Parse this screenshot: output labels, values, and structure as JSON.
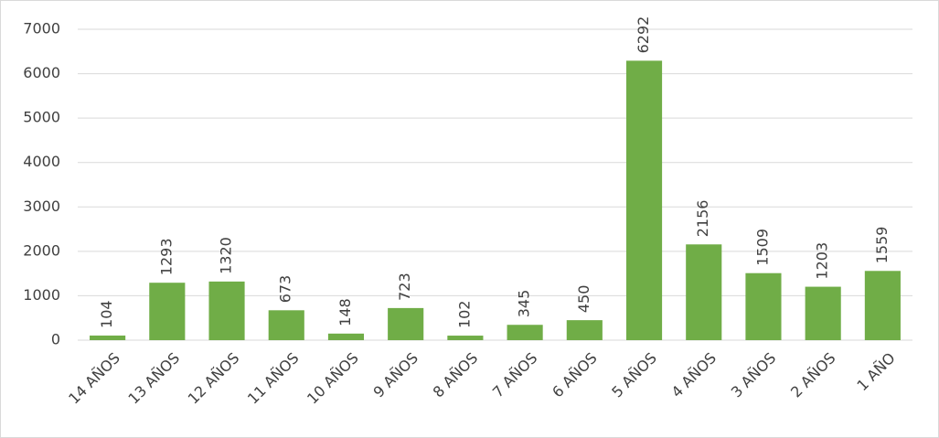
{
  "chart_data": {
    "type": "bar",
    "categories": [
      "14 AÑOS",
      "13 AÑOS",
      "12 AÑOS",
      "11 AÑOS",
      "10 AÑOS",
      "9 AÑOS",
      "8 AÑOS",
      "7 AÑOS",
      "6 AÑOS",
      "5 AÑOS",
      "4 AÑOS",
      "3 AÑOS",
      "2 AÑOS",
      "1 AÑO"
    ],
    "values": [
      104,
      1293,
      1320,
      673,
      148,
      723,
      102,
      345,
      450,
      6292,
      2156,
      1509,
      1203,
      1559
    ],
    "color": "#70ad47",
    "ylim": [
      0,
      7000
    ],
    "yticks": [
      0,
      1000,
      2000,
      3000,
      4000,
      5000,
      6000,
      7000
    ],
    "grid": true
  }
}
